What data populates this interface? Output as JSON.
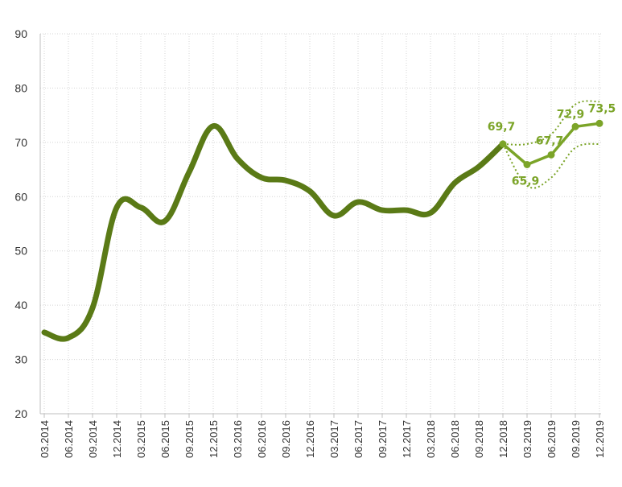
{
  "chart_data": {
    "type": "line",
    "title": "",
    "xlabel": "",
    "ylabel": "",
    "ylim": [
      20,
      90
    ],
    "yticks": [
      "20",
      "30",
      "40",
      "50",
      "60",
      "70",
      "80",
      "90"
    ],
    "grid": true,
    "categories": [
      "03.2014",
      "06.2014",
      "09.2014",
      "12.2014",
      "03.2015",
      "06.2015",
      "09.2015",
      "12.2015",
      "03.2016",
      "06.2016",
      "09.2016",
      "12.2016",
      "03.2017",
      "06.2017",
      "09.2017",
      "12.2017",
      "03.2018",
      "06.2018",
      "09.2018",
      "12.2018",
      "03.2019",
      "06.2019",
      "09.2019",
      "12.2019"
    ],
    "series": [
      {
        "name": "",
        "style": "solid-thick",
        "values": [
          35,
          34,
          39.5,
          58,
          58,
          55.5,
          64.5,
          73,
          67,
          63.5,
          63,
          61,
          56.5,
          59,
          57.5,
          57.5,
          57,
          62.5,
          65.5,
          69.7,
          null,
          null,
          null,
          null
        ]
      },
      {
        "name": "",
        "style": "solid-forecast",
        "values": [
          null,
          null,
          null,
          null,
          null,
          null,
          null,
          null,
          null,
          null,
          null,
          null,
          null,
          null,
          null,
          null,
          null,
          null,
          null,
          69.7,
          65.9,
          67.7,
          72.9,
          73.5
        ]
      },
      {
        "name": "",
        "style": "dotted-upper",
        "values": [
          null,
          null,
          null,
          null,
          null,
          null,
          null,
          null,
          null,
          null,
          null,
          null,
          null,
          null,
          null,
          null,
          null,
          null,
          null,
          69.7,
          69.7,
          71.5,
          77,
          77.5
        ]
      },
      {
        "name": "",
        "style": "dotted-lower",
        "values": [
          null,
          null,
          null,
          null,
          null,
          null,
          null,
          null,
          null,
          null,
          null,
          null,
          null,
          null,
          null,
          null,
          null,
          null,
          null,
          69.7,
          62,
          63.5,
          69,
          69.7
        ]
      }
    ],
    "data_labels": [
      {
        "index": 19,
        "value": 69.7,
        "text": "69,7"
      },
      {
        "index": 20,
        "value": 65.9,
        "text": "65,9"
      },
      {
        "index": 21,
        "value": 67.7,
        "text": "67,7"
      },
      {
        "index": 22,
        "value": 72.9,
        "text": "72,9"
      },
      {
        "index": 23,
        "value": 73.5,
        "text": "73,5"
      }
    ],
    "colors": {
      "history": "#5a7a16",
      "forecast": "#7ba428",
      "band": "#7ba428",
      "label": "#7ba428"
    }
  }
}
